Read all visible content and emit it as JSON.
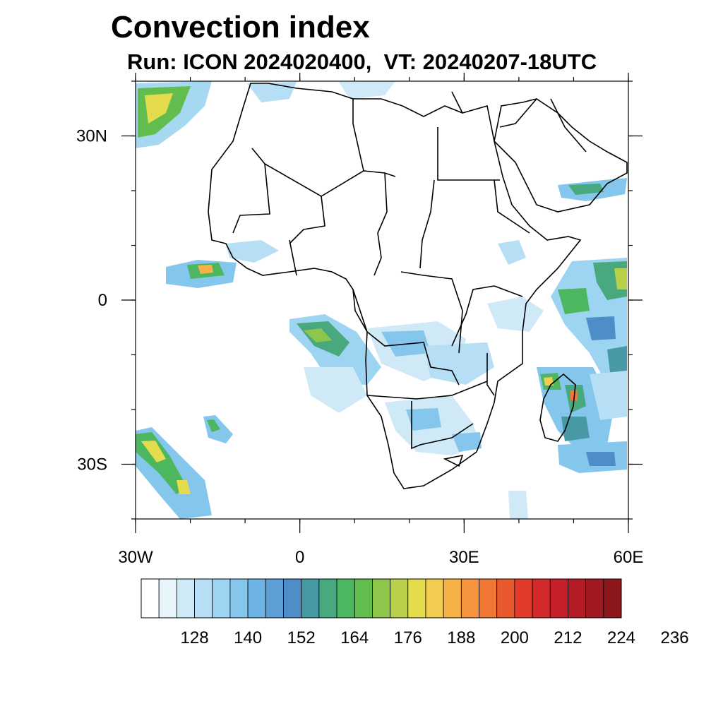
{
  "title": "Convection index",
  "subtitle": "Run: ICON 2024020400,  VT: 20240207-18UTC",
  "map": {
    "lon_range": [
      -30,
      60
    ],
    "lat_range": [
      -40,
      40
    ],
    "lon_ticks": [
      {
        "lon": -30,
        "label": "30W"
      },
      {
        "lon": 0,
        "label": "0"
      },
      {
        "lon": 30,
        "label": "30E"
      },
      {
        "lon": 60,
        "label": "60E"
      }
    ],
    "lat_ticks": [
      {
        "lat": 30,
        "label": "30N"
      },
      {
        "lat": 0,
        "label": "0"
      },
      {
        "lat": -30,
        "label": "30S"
      }
    ]
  },
  "colorbar": {
    "colors": [
      "#ffffff",
      "#e8f4fb",
      "#cfe9f7",
      "#b6def4",
      "#9dd4f1",
      "#84c6ec",
      "#6db3e3",
      "#5b9fd6",
      "#4d8ec8",
      "#4799a6",
      "#48a97f",
      "#4cb75f",
      "#62bd4f",
      "#8dc64b",
      "#b8d04a",
      "#e4dc4d",
      "#f2cc4e",
      "#f6b246",
      "#f5953e",
      "#f07834",
      "#e9592d",
      "#e03b2b",
      "#d42a2c",
      "#c52029",
      "#b31b25",
      "#a11921",
      "#8b171c"
    ],
    "labels": [
      "128",
      "140",
      "152",
      "164",
      "176",
      "188",
      "200",
      "212",
      "224",
      "236"
    ]
  }
}
